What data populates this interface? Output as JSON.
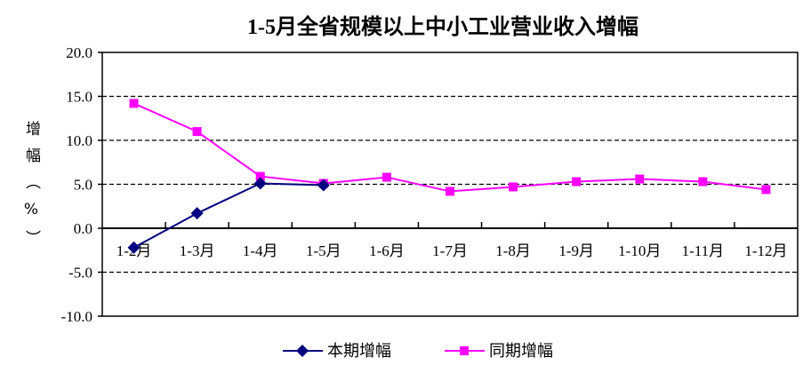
{
  "chart_data": {
    "type": "line",
    "title": "1-5月全省规模以上中小工业营业收入增幅",
    "ylabel": "增幅（%）",
    "xlabel": "",
    "categories": [
      "1-2月",
      "1-3月",
      "1-4月",
      "1-5月",
      "1-6月",
      "1-7月",
      "1-8月",
      "1-9月",
      "1-10月",
      "1-11月",
      "1-12月"
    ],
    "ylim": [
      -10,
      20
    ],
    "yticks": [
      "20.0",
      "15.0",
      "10.0",
      "5.0",
      "0.0",
      "-5.0",
      "-10.0"
    ],
    "grid": "horizontal dashed",
    "legend_position": "bottom",
    "series": [
      {
        "name": "本期增幅",
        "color": "#000080",
        "marker": "diamond",
        "values": [
          -2.2,
          1.7,
          5.1,
          4.9,
          null,
          null,
          null,
          null,
          null,
          null,
          null
        ]
      },
      {
        "name": "同期增幅",
        "color": "#ff00ff",
        "marker": "square",
        "values": [
          14.2,
          11.0,
          5.9,
          5.1,
          5.8,
          4.2,
          4.7,
          5.3,
          5.6,
          5.3,
          4.4
        ]
      }
    ]
  }
}
